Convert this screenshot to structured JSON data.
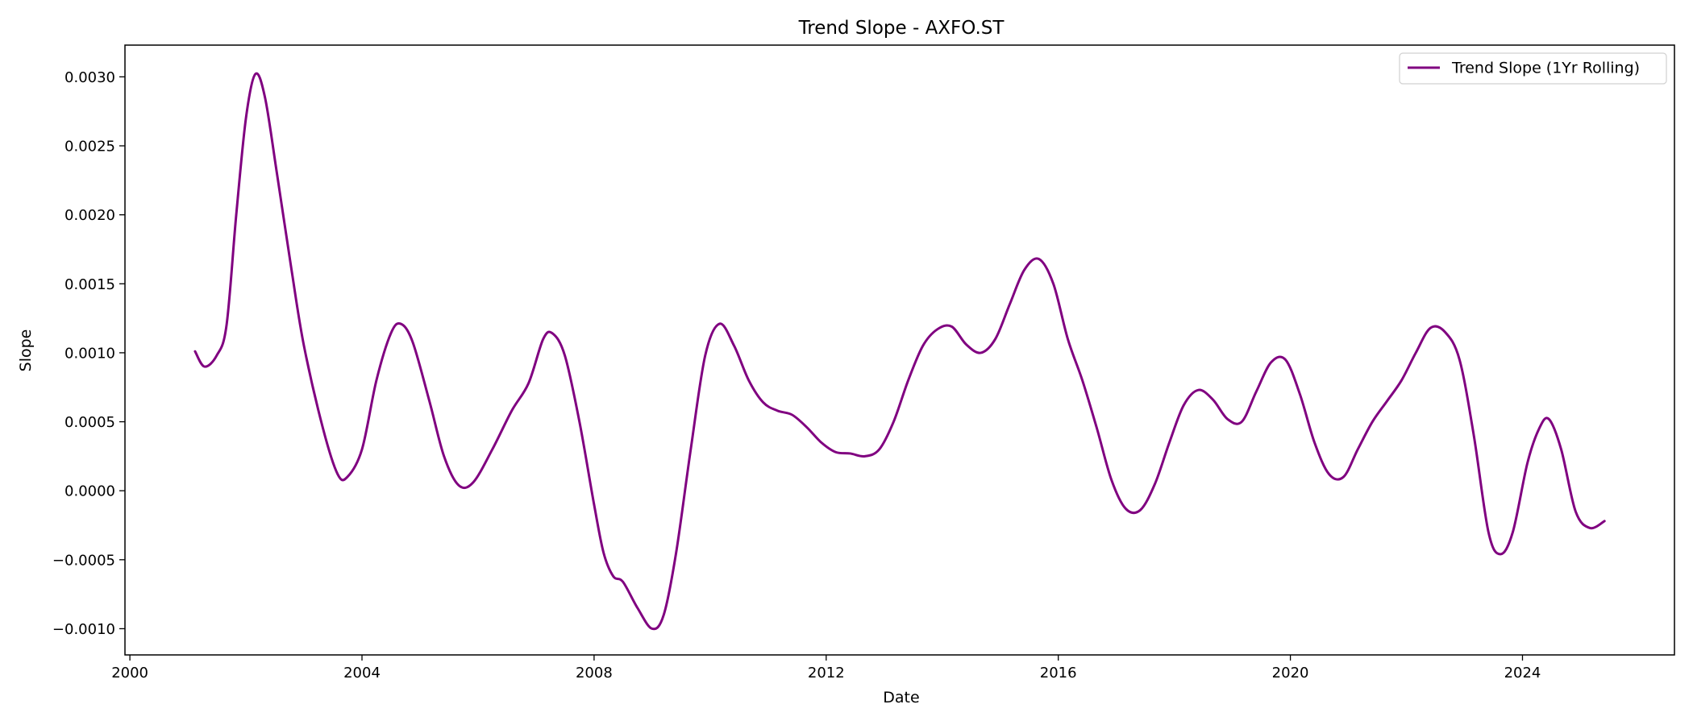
{
  "chart_data": {
    "type": "line",
    "title": "Trend Slope - AXFO.ST",
    "xlabel": "Date",
    "ylabel": "Slope",
    "xlim": [
      "1999-12-01",
      "2026-08-15"
    ],
    "ylim": [
      -0.00119,
      0.00323
    ],
    "x_ticks": [
      {
        "value": "2000-01-01",
        "label": "2000"
      },
      {
        "value": "2004-01-01",
        "label": "2004"
      },
      {
        "value": "2008-01-01",
        "label": "2008"
      },
      {
        "value": "2012-01-01",
        "label": "2012"
      },
      {
        "value": "2016-01-01",
        "label": "2016"
      },
      {
        "value": "2020-01-01",
        "label": "2020"
      },
      {
        "value": "2024-01-01",
        "label": "2024"
      }
    ],
    "y_ticks": [
      {
        "value": -0.001,
        "label": "−0.0010"
      },
      {
        "value": -0.0005,
        "label": "−0.0005"
      },
      {
        "value": 0.0,
        "label": "0.0000"
      },
      {
        "value": 0.0005,
        "label": "0.0005"
      },
      {
        "value": 0.001,
        "label": "0.0010"
      },
      {
        "value": 0.0015,
        "label": "0.0015"
      },
      {
        "value": 0.002,
        "label": "0.0020"
      },
      {
        "value": 0.0025,
        "label": "0.0025"
      },
      {
        "value": 0.003,
        "label": "0.0030"
      }
    ],
    "grid": false,
    "legend_position": "top-right",
    "series": [
      {
        "name": "Trend Slope (1Yr Rolling)",
        "color": "#800080",
        "points": [
          {
            "x": "2001-02-15",
            "y": 0.00101
          },
          {
            "x": "2001-04-15",
            "y": 0.0009
          },
          {
            "x": "2001-07-01",
            "y": 0.00098
          },
          {
            "x": "2001-09-01",
            "y": 0.0012
          },
          {
            "x": "2001-11-01",
            "y": 0.002
          },
          {
            "x": "2002-01-01",
            "y": 0.0027
          },
          {
            "x": "2002-03-01",
            "y": 0.00302
          },
          {
            "x": "2002-05-01",
            "y": 0.00285
          },
          {
            "x": "2002-07-15",
            "y": 0.0023
          },
          {
            "x": "2002-10-15",
            "y": 0.0016
          },
          {
            "x": "2003-01-01",
            "y": 0.00105
          },
          {
            "x": "2003-05-01",
            "y": 0.00045
          },
          {
            "x": "2003-08-01",
            "y": 0.00012
          },
          {
            "x": "2003-10-01",
            "y": 0.0001
          },
          {
            "x": "2004-01-01",
            "y": 0.0003
          },
          {
            "x": "2004-04-01",
            "y": 0.0008
          },
          {
            "x": "2004-07-01",
            "y": 0.00114
          },
          {
            "x": "2004-09-01",
            "y": 0.00121
          },
          {
            "x": "2004-11-15",
            "y": 0.00108
          },
          {
            "x": "2005-03-01",
            "y": 0.00065
          },
          {
            "x": "2005-06-01",
            "y": 0.00025
          },
          {
            "x": "2005-09-01",
            "y": 4e-05
          },
          {
            "x": "2005-12-01",
            "y": 6e-05
          },
          {
            "x": "2006-04-01",
            "y": 0.0003
          },
          {
            "x": "2006-08-01",
            "y": 0.00058
          },
          {
            "x": "2006-11-15",
            "y": 0.00078
          },
          {
            "x": "2007-02-15",
            "y": 0.0011
          },
          {
            "x": "2007-04-15",
            "y": 0.00114
          },
          {
            "x": "2007-07-01",
            "y": 0.00098
          },
          {
            "x": "2007-10-01",
            "y": 0.0005
          },
          {
            "x": "2008-01-01",
            "y": -0.0001
          },
          {
            "x": "2008-03-01",
            "y": -0.00045
          },
          {
            "x": "2008-05-01",
            "y": -0.00062
          },
          {
            "x": "2008-07-01",
            "y": -0.00066
          },
          {
            "x": "2008-10-01",
            "y": -0.00085
          },
          {
            "x": "2009-01-01",
            "y": -0.001
          },
          {
            "x": "2009-03-15",
            "y": -0.0009
          },
          {
            "x": "2009-06-01",
            "y": -0.00045
          },
          {
            "x": "2009-09-01",
            "y": 0.0003
          },
          {
            "x": "2009-12-01",
            "y": 0.00098
          },
          {
            "x": "2010-03-01",
            "y": 0.00121
          },
          {
            "x": "2010-06-01",
            "y": 0.00105
          },
          {
            "x": "2010-09-01",
            "y": 0.0008
          },
          {
            "x": "2010-12-01",
            "y": 0.00064
          },
          {
            "x": "2011-03-01",
            "y": 0.00058
          },
          {
            "x": "2011-06-01",
            "y": 0.00055
          },
          {
            "x": "2011-09-01",
            "y": 0.00046
          },
          {
            "x": "2011-12-01",
            "y": 0.00035
          },
          {
            "x": "2012-03-01",
            "y": 0.00028
          },
          {
            "x": "2012-06-01",
            "y": 0.00027
          },
          {
            "x": "2012-09-01",
            "y": 0.00025
          },
          {
            "x": "2012-12-01",
            "y": 0.0003
          },
          {
            "x": "2013-03-01",
            "y": 0.0005
          },
          {
            "x": "2013-06-01",
            "y": 0.0008
          },
          {
            "x": "2013-09-01",
            "y": 0.00105
          },
          {
            "x": "2013-12-01",
            "y": 0.00117
          },
          {
            "x": "2014-03-01",
            "y": 0.00119
          },
          {
            "x": "2014-06-01",
            "y": 0.00106
          },
          {
            "x": "2014-09-01",
            "y": 0.001
          },
          {
            "x": "2014-12-01",
            "y": 0.0011
          },
          {
            "x": "2015-03-01",
            "y": 0.00135
          },
          {
            "x": "2015-06-01",
            "y": 0.0016
          },
          {
            "x": "2015-09-01",
            "y": 0.00168
          },
          {
            "x": "2015-12-01",
            "y": 0.0015
          },
          {
            "x": "2016-03-01",
            "y": 0.0011
          },
          {
            "x": "2016-06-01",
            "y": 0.0008
          },
          {
            "x": "2016-09-01",
            "y": 0.00045
          },
          {
            "x": "2016-12-01",
            "y": 8e-05
          },
          {
            "x": "2017-03-01",
            "y": -0.00013
          },
          {
            "x": "2017-06-01",
            "y": -0.00014
          },
          {
            "x": "2017-09-01",
            "y": 5e-05
          },
          {
            "x": "2017-12-01",
            "y": 0.00035
          },
          {
            "x": "2018-03-01",
            "y": 0.00062
          },
          {
            "x": "2018-06-01",
            "y": 0.00073
          },
          {
            "x": "2018-09-01",
            "y": 0.00066
          },
          {
            "x": "2018-12-01",
            "y": 0.00052
          },
          {
            "x": "2019-03-01",
            "y": 0.0005
          },
          {
            "x": "2019-06-01",
            "y": 0.00072
          },
          {
            "x": "2019-09-01",
            "y": 0.00093
          },
          {
            "x": "2019-12-01",
            "y": 0.00095
          },
          {
            "x": "2020-03-01",
            "y": 0.0007
          },
          {
            "x": "2020-06-01",
            "y": 0.00035
          },
          {
            "x": "2020-09-01",
            "y": 0.00012
          },
          {
            "x": "2020-12-01",
            "y": 0.0001
          },
          {
            "x": "2021-03-01",
            "y": 0.0003
          },
          {
            "x": "2021-06-01",
            "y": 0.0005
          },
          {
            "x": "2021-09-01",
            "y": 0.00065
          },
          {
            "x": "2021-12-01",
            "y": 0.0008
          },
          {
            "x": "2022-03-01",
            "y": 0.001
          },
          {
            "x": "2022-06-01",
            "y": 0.00118
          },
          {
            "x": "2022-09-01",
            "y": 0.00115
          },
          {
            "x": "2022-12-01",
            "y": 0.00095
          },
          {
            "x": "2023-03-01",
            "y": 0.0004
          },
          {
            "x": "2023-06-01",
            "y": -0.0003
          },
          {
            "x": "2023-08-15",
            "y": -0.00046
          },
          {
            "x": "2023-11-01",
            "y": -0.0003
          },
          {
            "x": "2024-02-01",
            "y": 0.0002
          },
          {
            "x": "2024-04-15",
            "y": 0.00045
          },
          {
            "x": "2024-06-15",
            "y": 0.00052
          },
          {
            "x": "2024-09-01",
            "y": 0.0003
          },
          {
            "x": "2024-12-01",
            "y": -0.00015
          },
          {
            "x": "2025-03-01",
            "y": -0.00027
          },
          {
            "x": "2025-06-01",
            "y": -0.00022
          }
        ]
      }
    ]
  }
}
